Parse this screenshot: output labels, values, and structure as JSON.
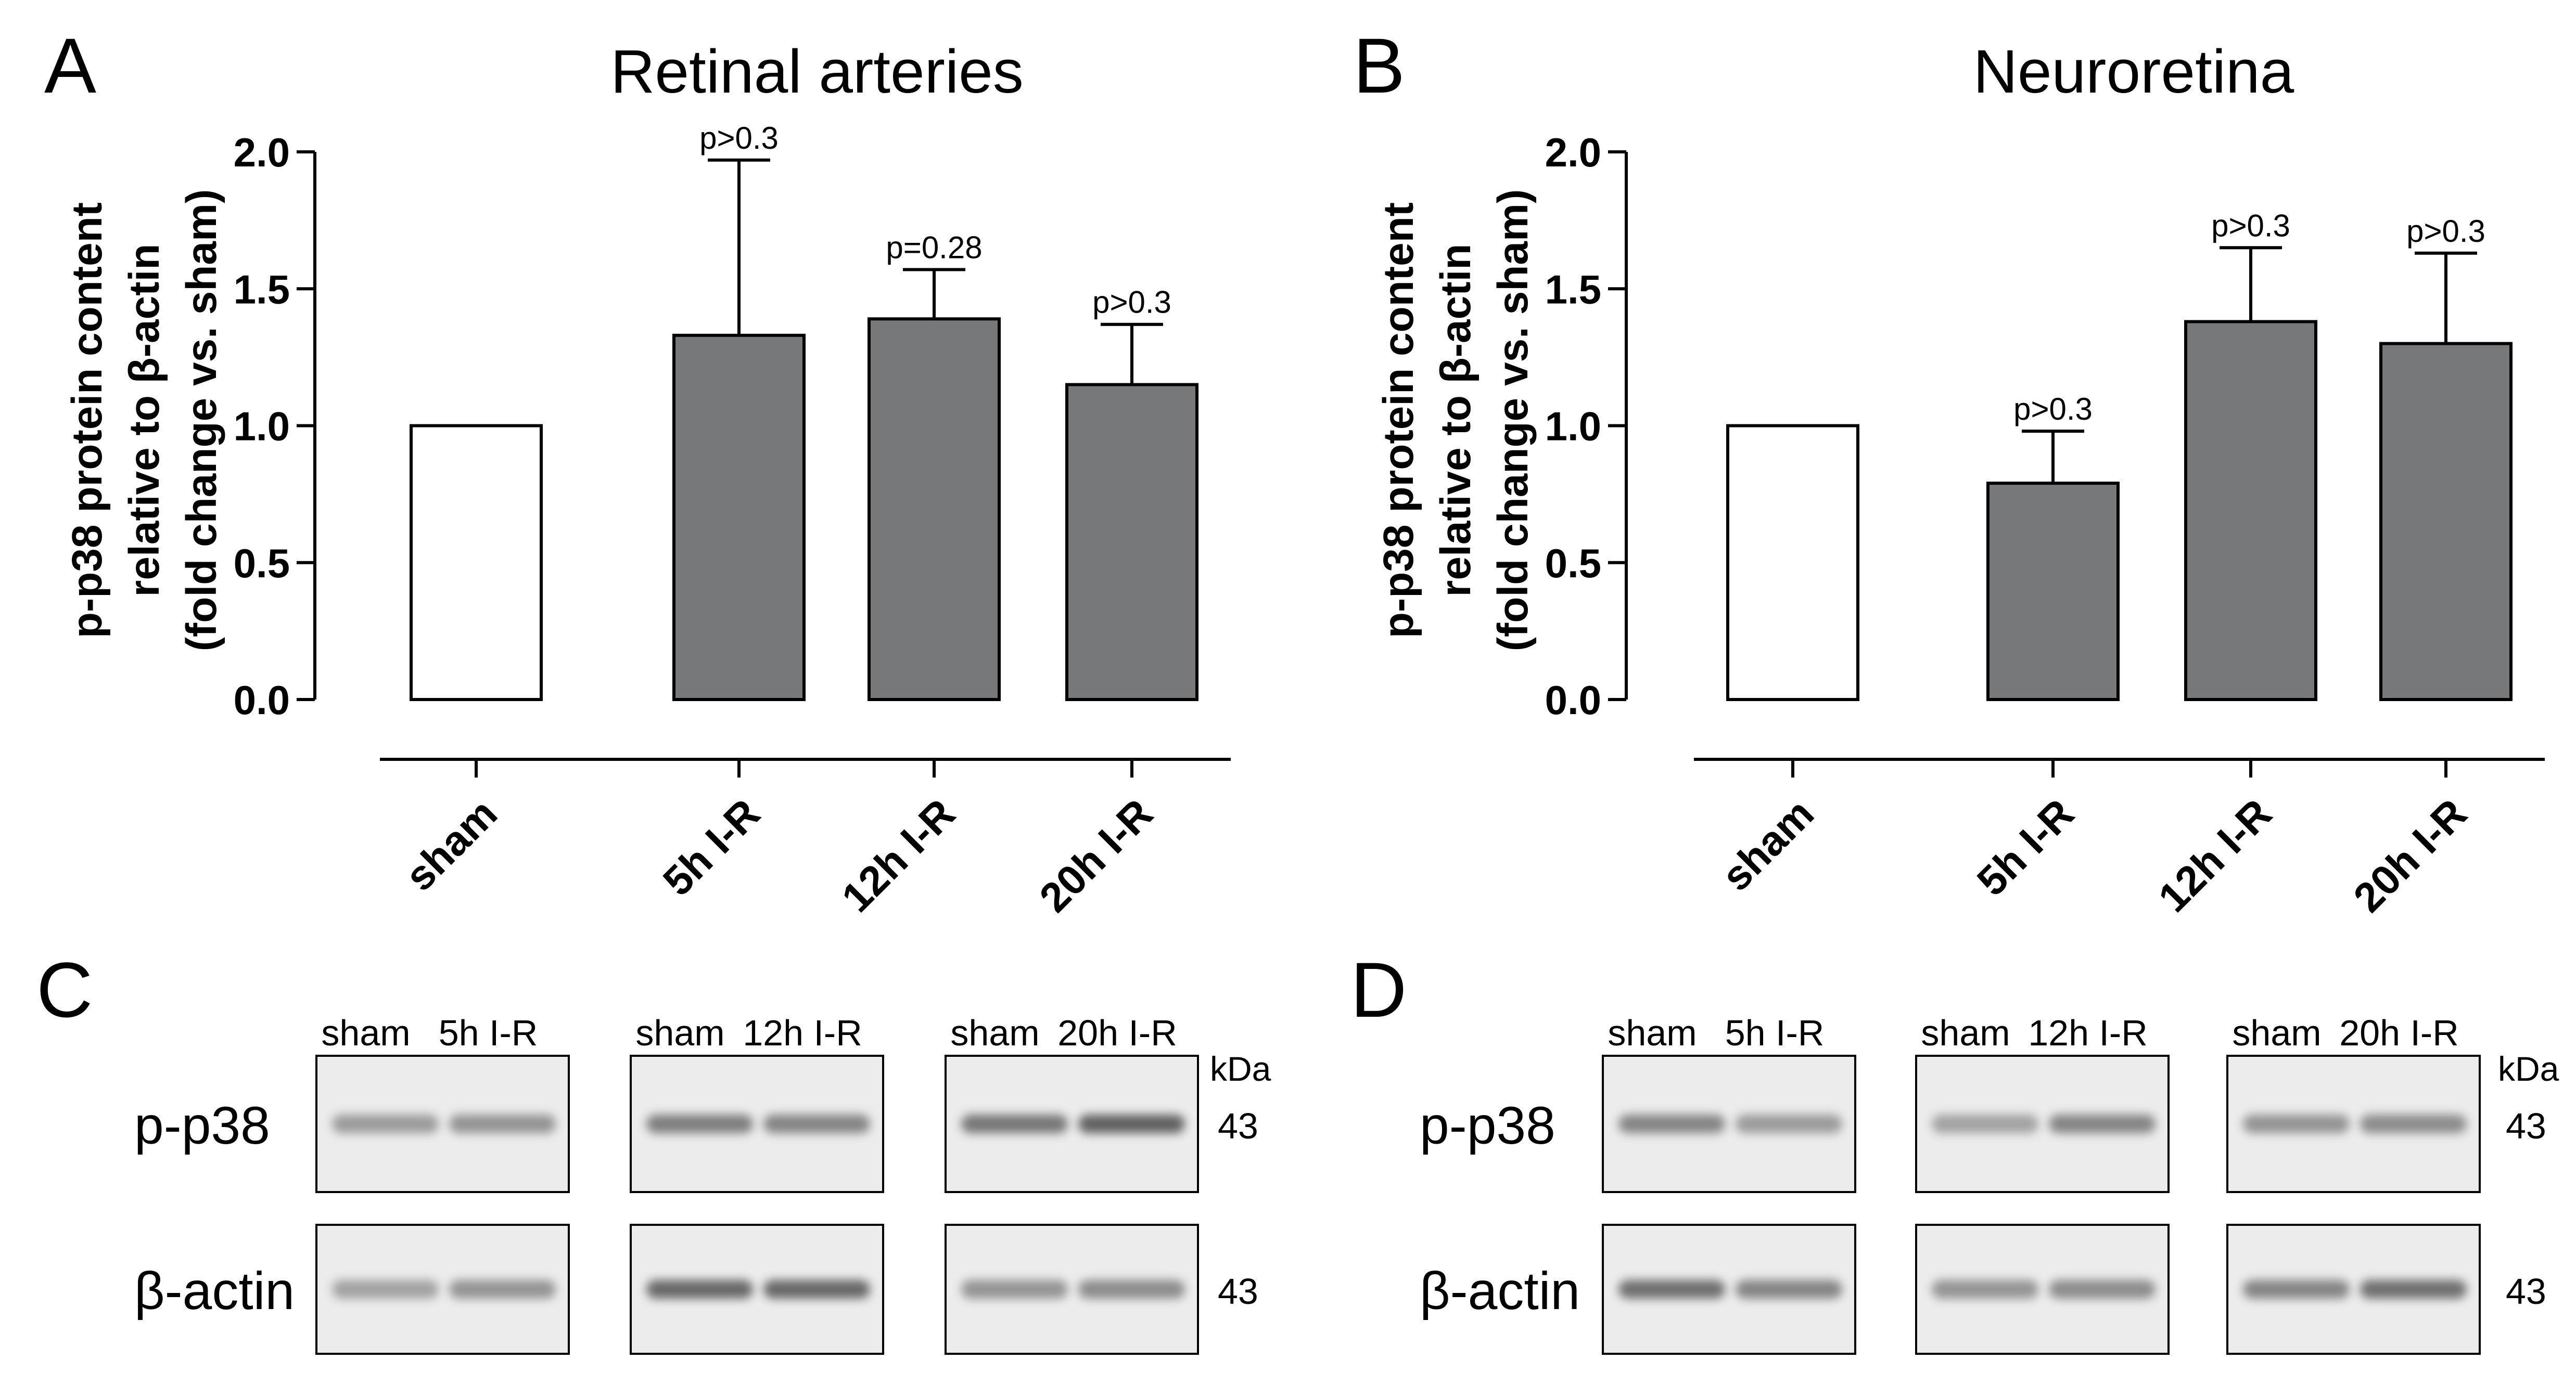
{
  "panels": {
    "A": {
      "letter": "A",
      "title": "Retinal arteries"
    },
    "B": {
      "letter": "B",
      "title": "Neuroretina"
    },
    "C": {
      "letter": "C"
    },
    "D": {
      "letter": "D"
    }
  },
  "chart_data": [
    {
      "type": "bar",
      "panel": "A",
      "title": "Retinal arteries",
      "xlabel": "",
      "ylabel": [
        "p-p38 protein content",
        "relative to β-actin",
        "(fold change vs. sham)"
      ],
      "categories": [
        "sham",
        "5h I-R",
        "12h I-R",
        "20h I-R"
      ],
      "values": [
        1.0,
        1.33,
        1.39,
        1.15
      ],
      "errors": [
        0,
        0.64,
        0.18,
        0.22
      ],
      "bar_colors": [
        "#ffffff",
        "#77787a",
        "#77787a",
        "#77787a"
      ],
      "annotations": [
        "",
        "p>0.3",
        "p=0.28",
        "p>0.3"
      ],
      "ylim": [
        0,
        2.0
      ],
      "yticks": [
        "0.0",
        "0.5",
        "1.0",
        "1.5",
        "2.0"
      ],
      "grid": false,
      "legend": "none"
    },
    {
      "type": "bar",
      "panel": "B",
      "title": "Neuroretina",
      "xlabel": "",
      "ylabel": [
        "p-p38 protein content",
        "relative to β-actin",
        "(fold change vs. sham)"
      ],
      "categories": [
        "sham",
        "5h I-R",
        "12h I-R",
        "20h I-R"
      ],
      "values": [
        1.0,
        0.79,
        1.38,
        1.3
      ],
      "errors": [
        0,
        0.19,
        0.27,
        0.33
      ],
      "bar_colors": [
        "#ffffff",
        "#77787a",
        "#77787a",
        "#77787a"
      ],
      "annotations": [
        "",
        "p>0.3",
        "p>0.3",
        "p>0.3"
      ],
      "ylim": [
        0,
        2.0
      ],
      "yticks": [
        "0.0",
        "0.5",
        "1.0",
        "1.5",
        "2.0"
      ],
      "grid": false,
      "legend": "none"
    }
  ],
  "blots": {
    "C": {
      "row_labels": [
        "p-p38",
        "β-actin"
      ],
      "kda_label": "kDa",
      "kda_values": [
        "43",
        "43"
      ],
      "groups": [
        {
          "lanes": [
            "sham",
            "5h I-R"
          ]
        },
        {
          "lanes": [
            "sham",
            "12h I-R"
          ]
        },
        {
          "lanes": [
            "sham",
            "20h I-R"
          ]
        }
      ]
    },
    "D": {
      "row_labels": [
        "p-p38",
        "β-actin"
      ],
      "kda_label": "kDa",
      "kda_values": [
        "43",
        "43"
      ],
      "groups": [
        {
          "lanes": [
            "sham",
            "5h I-R"
          ]
        },
        {
          "lanes": [
            "sham",
            "12h I-R"
          ]
        },
        {
          "lanes": [
            "sham",
            "20h I-R"
          ]
        }
      ]
    }
  },
  "colors": {
    "bar_fill_gray": "#77787a",
    "axis": "#000000",
    "blot_background": "#ececec",
    "band": "#5a5a5a"
  }
}
